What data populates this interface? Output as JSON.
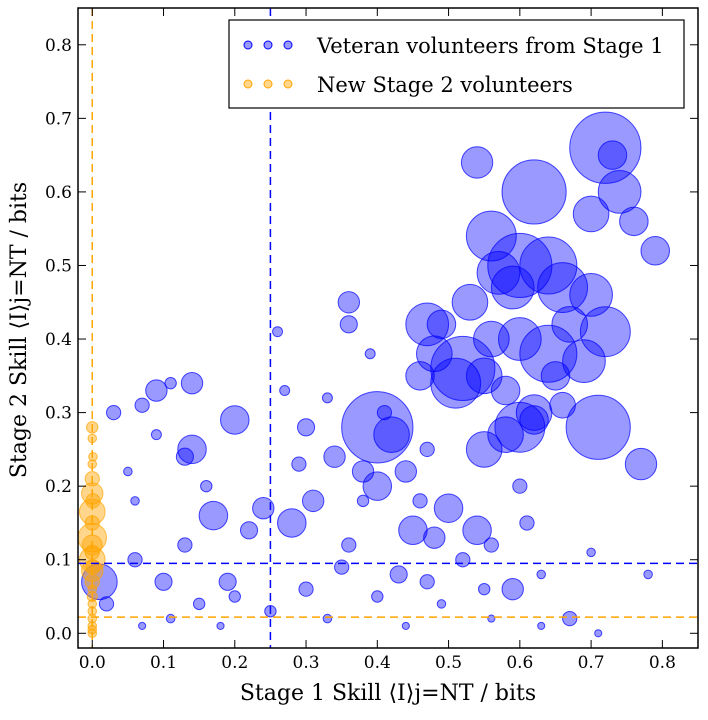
{
  "chart_data": {
    "type": "scatter",
    "xlabel": "Stage 1 Skill ⟨I⟩j=NT / bits",
    "ylabel": "Stage 2 Skill ⟨I⟩j=NT / bits",
    "xlim": [
      -0.02,
      0.85
    ],
    "ylim": [
      -0.02,
      0.85
    ],
    "xticks": [
      "0.0",
      "0.1",
      "0.2",
      "0.3",
      "0.4",
      "0.5",
      "0.6",
      "0.7",
      "0.8"
    ],
    "yticks": [
      "0.0",
      "0.1",
      "0.2",
      "0.3",
      "0.4",
      "0.5",
      "0.6",
      "0.7",
      "0.8"
    ],
    "grid": false,
    "legend": "top-right",
    "colors": {
      "veteran": "#0000ff",
      "new": "#ffa500"
    },
    "reference_lines": {
      "veteran_x": 0.25,
      "veteran_y": 0.095,
      "new_x": 0.0,
      "new_y": 0.022
    },
    "series": [
      {
        "name": "Veteran volunteers from Stage 1",
        "color": "#0000ff",
        "points": [
          [
            0.72,
            0.66,
            0.05
          ],
          [
            0.73,
            0.65,
            0.02
          ],
          [
            0.54,
            0.64,
            0.022
          ],
          [
            0.74,
            0.6,
            0.03
          ],
          [
            0.62,
            0.6,
            0.045
          ],
          [
            0.76,
            0.56,
            0.02
          ],
          [
            0.7,
            0.57,
            0.025
          ],
          [
            0.79,
            0.52,
            0.02
          ],
          [
            0.56,
            0.54,
            0.035
          ],
          [
            0.6,
            0.5,
            0.045
          ],
          [
            0.64,
            0.5,
            0.04
          ],
          [
            0.66,
            0.47,
            0.035
          ],
          [
            0.59,
            0.47,
            0.03
          ],
          [
            0.57,
            0.49,
            0.03
          ],
          [
            0.7,
            0.46,
            0.03
          ],
          [
            0.67,
            0.42,
            0.025
          ],
          [
            0.53,
            0.45,
            0.025
          ],
          [
            0.49,
            0.42,
            0.02
          ],
          [
            0.47,
            0.42,
            0.03
          ],
          [
            0.72,
            0.41,
            0.035
          ],
          [
            0.6,
            0.4,
            0.03
          ],
          [
            0.56,
            0.4,
            0.025
          ],
          [
            0.64,
            0.38,
            0.04
          ],
          [
            0.69,
            0.37,
            0.03
          ],
          [
            0.48,
            0.38,
            0.025
          ],
          [
            0.52,
            0.36,
            0.045
          ],
          [
            0.51,
            0.34,
            0.035
          ],
          [
            0.55,
            0.35,
            0.025
          ],
          [
            0.46,
            0.35,
            0.02
          ],
          [
            0.65,
            0.35,
            0.02
          ],
          [
            0.58,
            0.33,
            0.02
          ],
          [
            0.62,
            0.3,
            0.025
          ],
          [
            0.66,
            0.31,
            0.018
          ],
          [
            0.71,
            0.28,
            0.045
          ],
          [
            0.6,
            0.28,
            0.035
          ],
          [
            0.58,
            0.27,
            0.025
          ],
          [
            0.62,
            0.29,
            0.02
          ],
          [
            0.55,
            0.25,
            0.025
          ],
          [
            0.77,
            0.23,
            0.022
          ],
          [
            0.4,
            0.28,
            0.05
          ],
          [
            0.42,
            0.27,
            0.025
          ],
          [
            0.36,
            0.45,
            0.015
          ],
          [
            0.36,
            0.42,
            0.012
          ],
          [
            0.26,
            0.41,
            0.007
          ],
          [
            0.39,
            0.38,
            0.007
          ],
          [
            0.2,
            0.29,
            0.02
          ],
          [
            0.14,
            0.34,
            0.015
          ],
          [
            0.09,
            0.33,
            0.015
          ],
          [
            0.07,
            0.31,
            0.01
          ],
          [
            0.14,
            0.25,
            0.02
          ],
          [
            0.13,
            0.24,
            0.012
          ],
          [
            0.03,
            0.3,
            0.01
          ],
          [
            0.11,
            0.34,
            0.008
          ],
          [
            0.3,
            0.28,
            0.012
          ],
          [
            0.34,
            0.24,
            0.015
          ],
          [
            0.4,
            0.2,
            0.02
          ],
          [
            0.44,
            0.22,
            0.015
          ],
          [
            0.45,
            0.14,
            0.02
          ],
          [
            0.5,
            0.17,
            0.02
          ],
          [
            0.54,
            0.14,
            0.02
          ],
          [
            0.28,
            0.15,
            0.02
          ],
          [
            0.31,
            0.18,
            0.015
          ],
          [
            0.38,
            0.22,
            0.015
          ],
          [
            0.48,
            0.13,
            0.015
          ],
          [
            0.17,
            0.16,
            0.02
          ],
          [
            0.13,
            0.12,
            0.01
          ],
          [
            0.22,
            0.14,
            0.012
          ],
          [
            0.24,
            0.17,
            0.015
          ],
          [
            0.59,
            0.06,
            0.015
          ],
          [
            0.43,
            0.08,
            0.012
          ],
          [
            0.06,
            0.1,
            0.01
          ],
          [
            0.1,
            0.07,
            0.012
          ],
          [
            0.19,
            0.07,
            0.012
          ],
          [
            0.36,
            0.12,
            0.01
          ],
          [
            0.3,
            0.06,
            0.01
          ],
          [
            0.35,
            0.09,
            0.01
          ],
          [
            0.47,
            0.07,
            0.01
          ],
          [
            0.4,
            0.05,
            0.008
          ],
          [
            0.2,
            0.05,
            0.008
          ],
          [
            0.67,
            0.02,
            0.01
          ],
          [
            0.25,
            0.03,
            0.008
          ],
          [
            0.15,
            0.04,
            0.008
          ],
          [
            0.11,
            0.02,
            0.006
          ],
          [
            0.52,
            0.1,
            0.01
          ],
          [
            0.56,
            0.12,
            0.01
          ],
          [
            0.61,
            0.15,
            0.01
          ],
          [
            0.6,
            0.2,
            0.01
          ],
          [
            0.46,
            0.18,
            0.01
          ],
          [
            0.47,
            0.25,
            0.01
          ],
          [
            0.41,
            0.3,
            0.01
          ],
          [
            0.27,
            0.33,
            0.007
          ],
          [
            0.33,
            0.32,
            0.007
          ],
          [
            0.16,
            0.2,
            0.008
          ],
          [
            0.05,
            0.22,
            0.006
          ],
          [
            0.06,
            0.18,
            0.006
          ],
          [
            0.01,
            0.07,
            0.025
          ],
          [
            0.02,
            0.04,
            0.01
          ],
          [
            0.09,
            0.27,
            0.007
          ],
          [
            0.29,
            0.23,
            0.01
          ],
          [
            0.38,
            0.18,
            0.008
          ],
          [
            0.55,
            0.06,
            0.008
          ],
          [
            0.63,
            0.08,
            0.006
          ],
          [
            0.7,
            0.11,
            0.006
          ],
          [
            0.78,
            0.08,
            0.006
          ],
          [
            0.49,
            0.04,
            0.006
          ],
          [
            0.33,
            0.02,
            0.006
          ],
          [
            0.07,
            0.01,
            0.005
          ],
          [
            0.18,
            0.01,
            0.005
          ],
          [
            0.44,
            0.01,
            0.005
          ],
          [
            0.56,
            0.02,
            0.005
          ],
          [
            0.63,
            0.01,
            0.005
          ],
          [
            0.71,
            0.0,
            0.005
          ]
        ]
      },
      {
        "name": "New Stage 2 volunteers",
        "color": "#ffa500",
        "points": [
          [
            0.0,
            0.28,
            0.008
          ],
          [
            0.0,
            0.265,
            0.006
          ],
          [
            0.001,
            0.24,
            0.006
          ],
          [
            0.0,
            0.23,
            0.006
          ],
          [
            0.0,
            0.21,
            0.01
          ],
          [
            0.0,
            0.19,
            0.015
          ],
          [
            0.001,
            0.18,
            0.01
          ],
          [
            0.0,
            0.165,
            0.018
          ],
          [
            0.0,
            0.15,
            0.01
          ],
          [
            0.0,
            0.13,
            0.02
          ],
          [
            0.0,
            0.12,
            0.014
          ],
          [
            0.0,
            0.11,
            0.01
          ],
          [
            0.0,
            0.1,
            0.018
          ],
          [
            0.001,
            0.09,
            0.01
          ],
          [
            0.0,
            0.085,
            0.015
          ],
          [
            0.0,
            0.07,
            0.01
          ],
          [
            0.0,
            0.06,
            0.006
          ],
          [
            0.0,
            0.05,
            0.007
          ],
          [
            0.0,
            0.04,
            0.006
          ],
          [
            0.0,
            0.03,
            0.006
          ],
          [
            0.0,
            0.02,
            0.006
          ],
          [
            0.0,
            0.01,
            0.006
          ],
          [
            0.0,
            0.005,
            0.006
          ],
          [
            0.0,
            0.0,
            0.006
          ]
        ]
      }
    ]
  }
}
